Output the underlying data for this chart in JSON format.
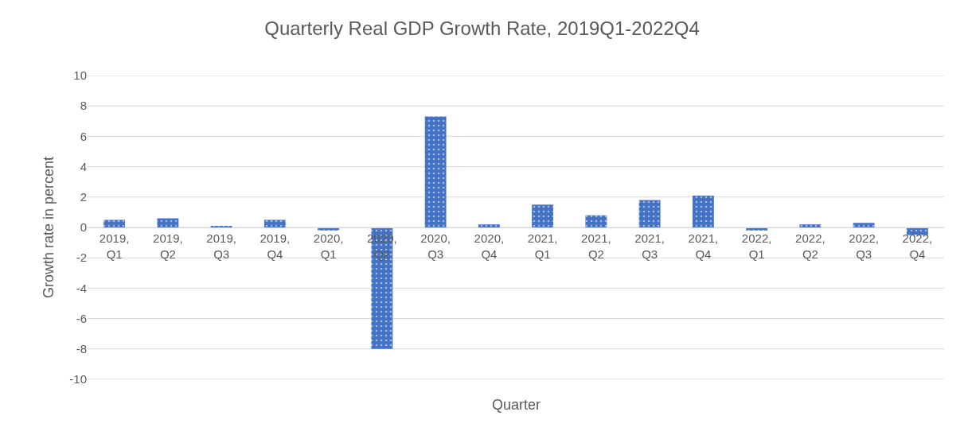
{
  "chart_data": {
    "type": "bar",
    "title": "Quarterly Real GDP Growth Rate, 2019Q1-2022Q4",
    "xlabel": "Quarter",
    "ylabel": "Growth rate in percent",
    "categories": [
      "2019, Q1",
      "2019, Q2",
      "2019, Q3",
      "2019, Q4",
      "2020, Q1",
      "2020, Q2",
      "2020, Q3",
      "2020, Q4",
      "2021, Q1",
      "2021, Q2",
      "2021, Q3",
      "2021, Q4",
      "2022, Q1",
      "2022, Q2",
      "2022, Q3",
      "2022, Q4"
    ],
    "values": [
      0.5,
      0.6,
      0.1,
      0.5,
      -0.2,
      -8.0,
      7.3,
      0.2,
      1.5,
      0.8,
      1.8,
      2.1,
      -0.2,
      0.2,
      0.3,
      -0.5
    ],
    "color": "#4472c4",
    "ylim": [
      -10,
      10
    ],
    "yticks": [
      -10,
      -8,
      -6,
      -4,
      -2,
      0,
      2,
      4,
      6,
      8,
      10
    ],
    "grid": "y"
  }
}
